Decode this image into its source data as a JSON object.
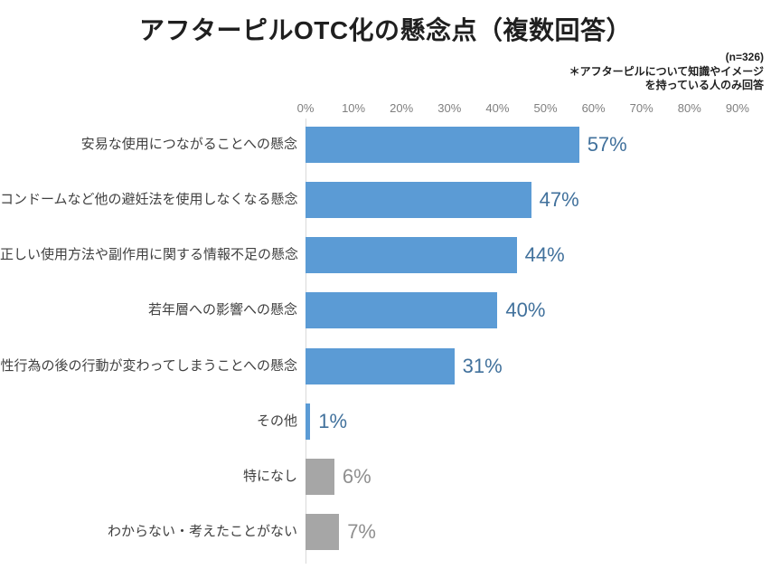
{
  "note": {
    "line1": "(n=326)",
    "line2": "＊アフターピルについて知識やイメージ",
    "line3": "を持っている人のみ回答"
  },
  "colors": {
    "blue_bar": "#5B9BD5",
    "blue_label": "#41719C",
    "gray_bar": "#A6A6A6",
    "gray_label": "#8F8F8F",
    "axis_line": "#D9D9D9",
    "tick_label": "#7F7F7F",
    "category_label": "#404040",
    "title_color": "#1F1F1F"
  },
  "chart_data": {
    "type": "bar",
    "orientation": "horizontal",
    "title": "アフターピルOTC化の懸念点（複数回答）",
    "sample_size": 326,
    "categories": [
      "安易な使用につながることへの懸念",
      "コンドームなど他の避妊法を使用しなくなる懸念",
      "正しい使用方法や副作用に関する情報不足の懸念",
      "若年層への影響への懸念",
      "性行為の後の行動が変わってしまうことへの懸念",
      "その他",
      "特になし",
      "わからない・考えたことがない"
    ],
    "values": [
      57,
      47,
      44,
      40,
      31,
      1,
      6,
      7
    ],
    "value_labels": [
      "57%",
      "47%",
      "44%",
      "40%",
      "31%",
      "1%",
      "6%",
      "7%"
    ],
    "bar_colors": [
      "blue",
      "blue",
      "blue",
      "blue",
      "blue",
      "blue",
      "gray",
      "gray"
    ],
    "xlim": [
      0,
      90
    ],
    "tick_labels": [
      "0%",
      "10%",
      "20%",
      "30%",
      "40%",
      "50%",
      "60%",
      "70%",
      "80%",
      "90%"
    ],
    "grid": false,
    "legend": false
  }
}
